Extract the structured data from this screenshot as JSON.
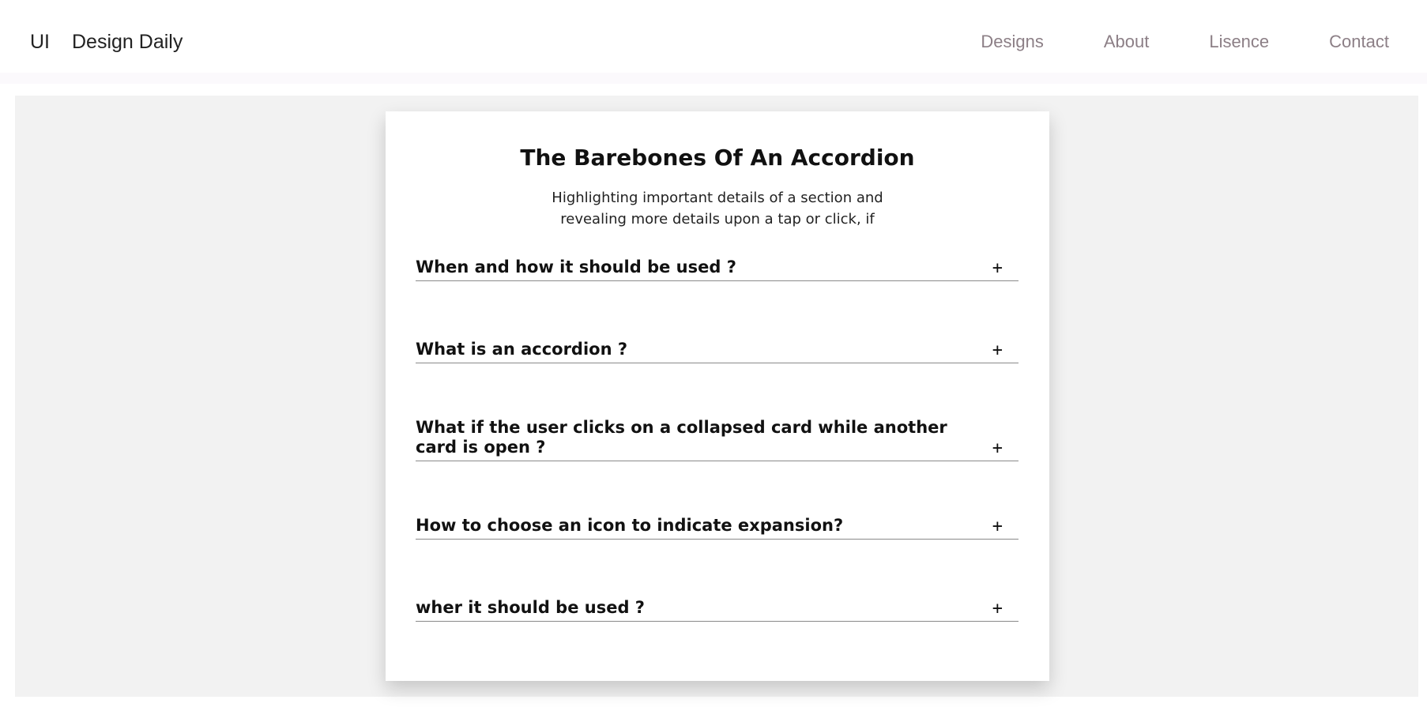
{
  "header": {
    "logo_mark": "UI",
    "site_name": "Design Daily",
    "nav": [
      {
        "label": "Designs"
      },
      {
        "label": "About"
      },
      {
        "label": "Lisence"
      },
      {
        "label": "Contact"
      }
    ]
  },
  "card": {
    "title": "The Barebones Of An Accordion",
    "subtitle": "Highlighting important details of a section and revealing more details upon a tap or click, if",
    "items": [
      {
        "question": "When and how it should be used ?",
        "icon": "+"
      },
      {
        "question": "What is an accordion ?",
        "icon": "+"
      },
      {
        "question": "What if the user clicks on a collapsed card while another card is open ?",
        "icon": "+"
      },
      {
        "question": "How to choose an icon to indicate expansion?",
        "icon": "+"
      },
      {
        "question": "wher it should be used ?",
        "icon": "+"
      }
    ]
  },
  "colors": {
    "nav_text": "#8c7f86",
    "stage_bg": "#f2f2f2",
    "divider": "#8a8a8a"
  }
}
